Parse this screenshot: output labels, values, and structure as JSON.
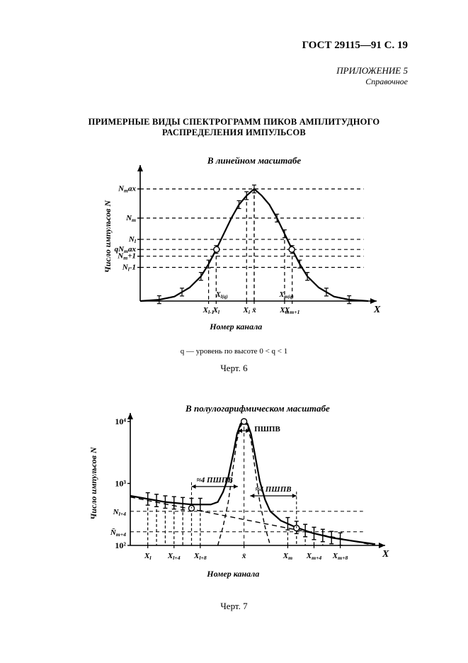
{
  "header": {
    "doc_id": "ГОСТ 29115—91 С. 19"
  },
  "appendix": {
    "line1": "ПРИЛОЖЕНИЕ 5",
    "line2": "Справочное"
  },
  "title": {
    "line1": "ПРИМЕРНЫЕ ВИДЫ СПЕКТРОГРАММ ПИКОВ АМПЛИТУДНОГО",
    "line2": "РАСПРЕДЕЛЕНИЯ ИМПУЛЬСОВ"
  },
  "chart6": {
    "type": "line",
    "title": "В линейном масштабе",
    "title_fontsize": 13,
    "title_fontstyle": "italic",
    "xlabel": "Номер канала",
    "ylabel": "Число импульсов N",
    "xlabel_fontsize": 12,
    "xlabel_fontstyle": "italic",
    "ylabel_fontsize": 12,
    "ylabel_fontstyle": "italic",
    "x_axis_var": "X",
    "footnote": "q — уровень по высоте 0 < q < 1",
    "caption": "Черт. 6",
    "background_color": "#ffffff",
    "line_color": "#000000",
    "line_width": 2.2,
    "dashed_width": 1.2,
    "marker_radius": 4,
    "marker_fill": "#ffffff",
    "marker_stroke": "#000000",
    "xlim": [
      0,
      12
    ],
    "ylim": [
      0,
      1.15
    ],
    "curve": [
      [
        0.0,
        0.0
      ],
      [
        1.0,
        0.012
      ],
      [
        1.8,
        0.04
      ],
      [
        2.6,
        0.12
      ],
      [
        3.2,
        0.22
      ],
      [
        3.6,
        0.33
      ],
      [
        4.0,
        0.46
      ],
      [
        4.4,
        0.6
      ],
      [
        4.8,
        0.74
      ],
      [
        5.2,
        0.86
      ],
      [
        5.6,
        0.94
      ],
      [
        6.0,
        1.0
      ],
      [
        6.4,
        0.94
      ],
      [
        6.8,
        0.86
      ],
      [
        7.2,
        0.74
      ],
      [
        7.6,
        0.6
      ],
      [
        8.0,
        0.46
      ],
      [
        8.4,
        0.33
      ],
      [
        8.8,
        0.22
      ],
      [
        9.4,
        0.12
      ],
      [
        10.2,
        0.04
      ],
      [
        11.0,
        0.012
      ],
      [
        12.0,
        0.0
      ]
    ],
    "y_ticks": [
      {
        "y": 1.0,
        "label": "N_max"
      },
      {
        "y": 0.74,
        "label": "N_m"
      },
      {
        "y": 0.55,
        "label": "N_l"
      },
      {
        "y": 0.46,
        "label": "qN_max"
      },
      {
        "y": 0.4,
        "label": "N_m+1"
      },
      {
        "y": 0.3,
        "label": "N_l-1"
      }
    ],
    "x_ticks": [
      {
        "x": 3.6,
        "label": "X_{l-1}"
      },
      {
        "x": 4.0,
        "label": "X_l"
      },
      {
        "x": 5.6,
        "label": "X_i"
      },
      {
        "x": 6.0,
        "label": "x̄"
      },
      {
        "x": 7.6,
        "label": "X_m"
      },
      {
        "x": 8.0,
        "label": "X_{m+1}"
      }
    ],
    "inner_x_labels": [
      {
        "x": 4.3,
        "label": "X_{l(q)}"
      },
      {
        "x": 7.7,
        "label": "X_{m(q)}"
      }
    ],
    "q_points": [
      {
        "x": 4.02,
        "y": 0.46
      },
      {
        "x": 7.98,
        "y": 0.46
      }
    ],
    "error_bars_x": [
      1.0,
      2.2,
      3.2,
      3.6,
      4.0,
      5.2,
      5.6,
      6.0,
      7.2,
      7.6,
      8.0,
      8.4,
      8.8,
      9.8,
      11.0
    ],
    "error_bar_halfheight": 0.035,
    "drop_lines_x": [
      3.6,
      4.0,
      5.6,
      6.0,
      7.6,
      8.0
    ]
  },
  "chart7": {
    "type": "semilogy-line",
    "title": "В полулогарифмическом масштабе",
    "title_fontsize": 13,
    "title_fontstyle": "italic",
    "xlabel": "Номер канала",
    "ylabel": "Число импульсов N",
    "x_axis_var": "X",
    "caption": "Черт. 7",
    "background_color": "#ffffff",
    "line_color": "#000000",
    "line_width": 2.2,
    "dashed_width": 1.2,
    "marker_radius": 4,
    "marker_fill": "#ffffff",
    "marker_stroke": "#000000",
    "xlim": [
      0,
      14
    ],
    "ylim_log": [
      2,
      4
    ],
    "y_ticks_log": [
      {
        "logy": 4,
        "label": "10⁴"
      },
      {
        "logy": 3,
        "label": "10³"
      },
      {
        "logy": 2,
        "label": "10²"
      }
    ],
    "y_extra_ticks": [
      {
        "logy": 2.55,
        "label": "N_{l+4}"
      },
      {
        "logy": 2.22,
        "label": "N̄_{m+4}"
      }
    ],
    "signal_curve_logy": [
      [
        5.0,
        2.0
      ],
      [
        5.3,
        2.3
      ],
      [
        5.6,
        2.7
      ],
      [
        5.9,
        3.3
      ],
      [
        6.1,
        3.7
      ],
      [
        6.3,
        3.92
      ],
      [
        6.5,
        4.0
      ],
      [
        6.7,
        3.92
      ],
      [
        6.9,
        3.7
      ],
      [
        7.1,
        3.3
      ],
      [
        7.4,
        2.7
      ],
      [
        7.7,
        2.3
      ],
      [
        8.0,
        2.0
      ]
    ],
    "background_line_logy": [
      [
        0.0,
        2.78
      ],
      [
        14.0,
        2.0
      ]
    ],
    "sum_curve_logy": [
      [
        0.0,
        2.8
      ],
      [
        2.0,
        2.7
      ],
      [
        3.5,
        2.66
      ],
      [
        4.6,
        2.66
      ],
      [
        5.0,
        2.7
      ],
      [
        5.3,
        2.86
      ],
      [
        5.6,
        3.1
      ],
      [
        5.9,
        3.5
      ],
      [
        6.1,
        3.8
      ],
      [
        6.3,
        3.96
      ],
      [
        6.5,
        4.02
      ],
      [
        6.7,
        3.96
      ],
      [
        6.9,
        3.8
      ],
      [
        7.1,
        3.5
      ],
      [
        7.4,
        3.04
      ],
      [
        7.7,
        2.74
      ],
      [
        8.0,
        2.55
      ],
      [
        8.6,
        2.4
      ],
      [
        9.4,
        2.3
      ],
      [
        10.4,
        2.2
      ],
      [
        11.6,
        2.12
      ],
      [
        13.0,
        2.06
      ],
      [
        14.0,
        2.02
      ]
    ],
    "markers": [
      {
        "x": 3.5,
        "logy": 2.6
      },
      {
        "x": 6.5,
        "logy": 4.0
      },
      {
        "x": 9.5,
        "logy": 2.28
      }
    ],
    "peak_label": "ПШПВ",
    "side_label": "≈4 ПШПВ",
    "x_ticks": [
      {
        "x": 1.0,
        "label": "X_l"
      },
      {
        "x": 2.5,
        "label": "X_{l+4}"
      },
      {
        "x": 4.0,
        "label": "X_{l+8}"
      },
      {
        "x": 6.5,
        "label": "x̄"
      },
      {
        "x": 9.0,
        "label": "X_m"
      },
      {
        "x": 10.5,
        "label": "X_{m+4}"
      },
      {
        "x": 12.0,
        "label": "X_{m+8}"
      }
    ],
    "error_bars_x": [
      1.0,
      1.5,
      2.0,
      2.5,
      3.0,
      3.5,
      4.0,
      9.0,
      9.5,
      10.0,
      10.5,
      11.0,
      11.5,
      12.0
    ],
    "error_bar_halfheight_log": 0.1
  }
}
